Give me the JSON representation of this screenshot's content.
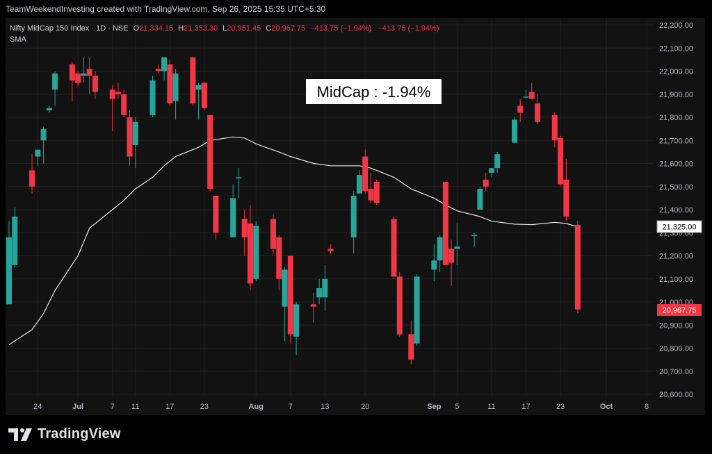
{
  "header": {
    "attribution": "TeamWeekendInvesting created with TradingView.com, Sep 26, 2025 15:35 UTC+5:30"
  },
  "legend": {
    "symbol": "Nifty MidCap 150 Index · 1D · NSE",
    "o_label": "O",
    "o_value": "21,334.15",
    "h_label": "H",
    "h_value": "21,353.30",
    "l_label": "L",
    "l_value": "20,951.45",
    "c_label": "C",
    "c_value": "20,967.75",
    "change": "−413.75 (−1.94%)",
    "change2": "−413.75 (−1.94%)",
    "indicator": "SMA"
  },
  "annotation": {
    "text": "MidCap : -1.94%"
  },
  "price_tags": {
    "sma": "21,325.00",
    "close": "20,967.75"
  },
  "footer": {
    "brand": "TradingView"
  },
  "colors": {
    "up": "#26a69a",
    "down": "#f23645",
    "sma": "#e6e6e6",
    "background": "#121212",
    "grid": "#1f1f1f"
  },
  "chart_data": {
    "type": "candlestick",
    "title": "Nifty MidCap 150 Index · 1D · NSE",
    "ylim": [
      20600,
      22200
    ],
    "y_ticks": [
      "22,200.00",
      "22,100.00",
      "22,000.00",
      "21,900.00",
      "21,800.00",
      "21,700.00",
      "21,600.00",
      "21,500.00",
      "21,400.00",
      "21,300.00",
      "21,200.00",
      "21,100.00",
      "21,000.00",
      "20,900.00",
      "20,800.00",
      "20,700.00",
      "20,600.00"
    ],
    "x_ticks": [
      {
        "label": "24",
        "date": "2025-06-24"
      },
      {
        "label": "Jul",
        "date": "2025-07-01"
      },
      {
        "label": "7",
        "date": "2025-07-07"
      },
      {
        "label": "11",
        "date": "2025-07-11"
      },
      {
        "label": "17",
        "date": "2025-07-17"
      },
      {
        "label": "23",
        "date": "2025-07-23"
      },
      {
        "label": "Aug",
        "date": "2025-08-01"
      },
      {
        "label": "7",
        "date": "2025-08-07"
      },
      {
        "label": "13",
        "date": "2025-08-13"
      },
      {
        "label": "20",
        "date": "2025-08-20"
      },
      {
        "label": "Sep",
        "date": "2025-09-01"
      },
      {
        "label": "5",
        "date": "2025-09-05"
      },
      {
        "label": "11",
        "date": "2025-09-11"
      },
      {
        "label": "17",
        "date": "2025-09-17"
      },
      {
        "label": "23",
        "date": "2025-09-23"
      },
      {
        "label": "Oct",
        "date": "2025-10-01"
      },
      {
        "label": "8",
        "date": "2025-10-08"
      }
    ],
    "candles": [
      {
        "date": "2025-06-19",
        "o": 20990,
        "h": 21350,
        "l": 20990,
        "c": 21280
      },
      {
        "date": "2025-06-20",
        "o": 21160,
        "h": 21410,
        "l": 21150,
        "c": 21370
      },
      {
        "date": "2025-06-23",
        "o": 21570,
        "h": 21640,
        "l": 21470,
        "c": 21500
      },
      {
        "date": "2025-06-24",
        "o": 21630,
        "h": 21660,
        "l": 21590,
        "c": 21660
      },
      {
        "date": "2025-06-25",
        "o": 21700,
        "h": 21760,
        "l": 21600,
        "c": 21750
      },
      {
        "date": "2025-06-26",
        "o": 21830,
        "h": 21850,
        "l": 21820,
        "c": 21840
      },
      {
        "date": "2025-06-27",
        "o": 21920,
        "h": 22000,
        "l": 21850,
        "c": 21990
      },
      {
        "date": "2025-06-30",
        "o": 22030,
        "h": 22040,
        "l": 21870,
        "c": 21960
      },
      {
        "date": "2025-07-01",
        "o": 21990,
        "h": 22000,
        "l": 21930,
        "c": 21950
      },
      {
        "date": "2025-07-02",
        "o": 21980,
        "h": 22060,
        "l": 21950,
        "c": 21990
      },
      {
        "date": "2025-07-03",
        "o": 22010,
        "h": 22060,
        "l": 21900,
        "c": 21980
      },
      {
        "date": "2025-07-04",
        "o": 21980,
        "h": 22000,
        "l": 21880,
        "c": 21910
      },
      {
        "date": "2025-07-07",
        "o": 21920,
        "h": 21940,
        "l": 21740,
        "c": 21880
      },
      {
        "date": "2025-07-08",
        "o": 21910,
        "h": 21950,
        "l": 21880,
        "c": 21900
      },
      {
        "date": "2025-07-09",
        "o": 21900,
        "h": 21920,
        "l": 21800,
        "c": 21810
      },
      {
        "date": "2025-07-10",
        "o": 21800,
        "h": 21830,
        "l": 21590,
        "c": 21630
      },
      {
        "date": "2025-07-11",
        "o": 21680,
        "h": 21800,
        "l": 21580,
        "c": 21780
      },
      {
        "date": "2025-07-14",
        "o": 21810,
        "h": 21980,
        "l": 21800,
        "c": 21960
      },
      {
        "date": "2025-07-15",
        "o": 22010,
        "h": 22030,
        "l": 21990,
        "c": 22000
      },
      {
        "date": "2025-07-16",
        "o": 22000,
        "h": 22060,
        "l": 21960,
        "c": 22060
      },
      {
        "date": "2025-07-17",
        "o": 22030,
        "h": 22050,
        "l": 21850,
        "c": 21860
      },
      {
        "date": "2025-07-18",
        "o": 21870,
        "h": 22010,
        "l": 21790,
        "c": 21990
      },
      {
        "date": "2025-07-21",
        "o": 22060,
        "h": 22060,
        "l": 21850,
        "c": 21860
      },
      {
        "date": "2025-07-22",
        "o": 21920,
        "h": 21950,
        "l": 21790,
        "c": 21940
      },
      {
        "date": "2025-07-23",
        "o": 21950,
        "h": 21950,
        "l": 21830,
        "c": 21840
      },
      {
        "date": "2025-07-24",
        "o": 21810,
        "h": 21810,
        "l": 21480,
        "c": 21490
      },
      {
        "date": "2025-07-25",
        "o": 21460,
        "h": 21460,
        "l": 21270,
        "c": 21300
      },
      {
        "date": "2025-07-28",
        "o": 21280,
        "h": 21510,
        "l": 21280,
        "c": 21450
      },
      {
        "date": "2025-07-29",
        "o": 21540,
        "h": 21580,
        "l": 21450,
        "c": 21540
      },
      {
        "date": "2025-07-30",
        "o": 21360,
        "h": 21400,
        "l": 21200,
        "c": 21280
      },
      {
        "date": "2025-07-31",
        "o": 21340,
        "h": 21420,
        "l": 21050,
        "c": 21080
      },
      {
        "date": "2025-08-01",
        "o": 21100,
        "h": 21350,
        "l": 21090,
        "c": 21330
      },
      {
        "date": "2025-08-04",
        "o": 21360,
        "h": 21380,
        "l": 21210,
        "c": 21230
      },
      {
        "date": "2025-08-05",
        "o": 21280,
        "h": 21290,
        "l": 21050,
        "c": 21100
      },
      {
        "date": "2025-08-06",
        "o": 20980,
        "h": 21150,
        "l": 20830,
        "c": 21140
      },
      {
        "date": "2025-08-07",
        "o": 21200,
        "h": 21200,
        "l": 20820,
        "c": 20860
      },
      {
        "date": "2025-08-08",
        "o": 20850,
        "h": 21000,
        "l": 20770,
        "c": 20990
      },
      {
        "date": "2025-08-11",
        "o": 20990,
        "h": 21040,
        "l": 20910,
        "c": 20980
      },
      {
        "date": "2025-08-12",
        "o": 21020,
        "h": 21100,
        "l": 20990,
        "c": 21060
      },
      {
        "date": "2025-08-13",
        "o": 21020,
        "h": 21160,
        "l": 20960,
        "c": 21100
      },
      {
        "date": "2025-08-14",
        "o": 21230,
        "h": 21250,
        "l": 21210,
        "c": 21220
      },
      {
        "date": "2025-08-18",
        "o": 21280,
        "h": 21480,
        "l": 21210,
        "c": 21460
      },
      {
        "date": "2025-08-19",
        "o": 21470,
        "h": 21570,
        "l": 21470,
        "c": 21550
      },
      {
        "date": "2025-08-20",
        "o": 21630,
        "h": 21660,
        "l": 21470,
        "c": 21480
      },
      {
        "date": "2025-08-21",
        "o": 21490,
        "h": 21560,
        "l": 21430,
        "c": 21440
      },
      {
        "date": "2025-08-22",
        "o": 21520,
        "h": 21530,
        "l": 21420,
        "c": 21430
      },
      {
        "date": "2025-08-25",
        "o": 21360,
        "h": 21370,
        "l": 21100,
        "c": 21110
      },
      {
        "date": "2025-08-26",
        "o": 21110,
        "h": 21130,
        "l": 20850,
        "c": 20860
      },
      {
        "date": "2025-08-28",
        "o": 20860,
        "h": 20920,
        "l": 20730,
        "c": 20750
      },
      {
        "date": "2025-08-29",
        "o": 20820,
        "h": 21120,
        "l": 20810,
        "c": 21110
      },
      {
        "date": "2025-09-01",
        "o": 21140,
        "h": 21250,
        "l": 21090,
        "c": 21180
      },
      {
        "date": "2025-09-02",
        "o": 21180,
        "h": 21290,
        "l": 21130,
        "c": 21280
      },
      {
        "date": "2025-09-03",
        "o": 21520,
        "h": 21520,
        "l": 21160,
        "c": 21160
      },
      {
        "date": "2025-09-04",
        "o": 21230,
        "h": 21270,
        "l": 21070,
        "c": 21170
      },
      {
        "date": "2025-09-05",
        "o": 21230,
        "h": 21340,
        "l": 21160,
        "c": 21240
      },
      {
        "date": "2025-09-08",
        "o": 21290,
        "h": 21300,
        "l": 21240,
        "c": 21290
      },
      {
        "date": "2025-09-09",
        "o": 21400,
        "h": 21500,
        "l": 21400,
        "c": 21490
      },
      {
        "date": "2025-09-10",
        "o": 21530,
        "h": 21560,
        "l": 21480,
        "c": 21500
      },
      {
        "date": "2025-09-11",
        "o": 21560,
        "h": 21580,
        "l": 21540,
        "c": 21580
      },
      {
        "date": "2025-09-12",
        "o": 21580,
        "h": 21650,
        "l": 21560,
        "c": 21640
      },
      {
        "date": "2025-09-15",
        "o": 21690,
        "h": 21800,
        "l": 21690,
        "c": 21790
      },
      {
        "date": "2025-09-16",
        "o": 21850,
        "h": 21880,
        "l": 21780,
        "c": 21820
      },
      {
        "date": "2025-09-17",
        "o": 21890,
        "h": 21920,
        "l": 21880,
        "c": 21890
      },
      {
        "date": "2025-09-18",
        "o": 21910,
        "h": 21950,
        "l": 21880,
        "c": 21880
      },
      {
        "date": "2025-09-19",
        "o": 21860,
        "h": 21900,
        "l": 21770,
        "c": 21780
      },
      {
        "date": "2025-09-22",
        "o": 21810,
        "h": 21820,
        "l": 21670,
        "c": 21700
      },
      {
        "date": "2025-09-23",
        "o": 21710,
        "h": 21720,
        "l": 21500,
        "c": 21510
      },
      {
        "date": "2025-09-24",
        "o": 21530,
        "h": 21620,
        "l": 21350,
        "c": 21370
      },
      {
        "date": "2025-09-26",
        "o": 21334.15,
        "h": 21353.3,
        "l": 20951.45,
        "c": 20967.75
      }
    ],
    "sma": [
      {
        "date": "2025-06-19",
        "v": 20815
      },
      {
        "date": "2025-06-23",
        "v": 20880
      },
      {
        "date": "2025-06-25",
        "v": 20950
      },
      {
        "date": "2025-06-27",
        "v": 21050
      },
      {
        "date": "2025-07-01",
        "v": 21200
      },
      {
        "date": "2025-07-03",
        "v": 21320
      },
      {
        "date": "2025-07-07",
        "v": 21400
      },
      {
        "date": "2025-07-09",
        "v": 21440
      },
      {
        "date": "2025-07-11",
        "v": 21490
      },
      {
        "date": "2025-07-14",
        "v": 21540
      },
      {
        "date": "2025-07-16",
        "v": 21590
      },
      {
        "date": "2025-07-18",
        "v": 21630
      },
      {
        "date": "2025-07-22",
        "v": 21670
      },
      {
        "date": "2025-07-24",
        "v": 21700
      },
      {
        "date": "2025-07-28",
        "v": 21715
      },
      {
        "date": "2025-07-30",
        "v": 21710
      },
      {
        "date": "2025-08-01",
        "v": 21685
      },
      {
        "date": "2025-08-05",
        "v": 21650
      },
      {
        "date": "2025-08-07",
        "v": 21630
      },
      {
        "date": "2025-08-11",
        "v": 21600
      },
      {
        "date": "2025-08-14",
        "v": 21590
      },
      {
        "date": "2025-08-19",
        "v": 21590
      },
      {
        "date": "2025-08-21",
        "v": 21580
      },
      {
        "date": "2025-08-25",
        "v": 21540
      },
      {
        "date": "2025-08-28",
        "v": 21490
      },
      {
        "date": "2025-09-01",
        "v": 21450
      },
      {
        "date": "2025-09-03",
        "v": 21420
      },
      {
        "date": "2025-09-05",
        "v": 21395
      },
      {
        "date": "2025-09-09",
        "v": 21370
      },
      {
        "date": "2025-09-11",
        "v": 21350
      },
      {
        "date": "2025-09-15",
        "v": 21337
      },
      {
        "date": "2025-09-18",
        "v": 21335
      },
      {
        "date": "2025-09-22",
        "v": 21345
      },
      {
        "date": "2025-09-24",
        "v": 21340
      },
      {
        "date": "2025-09-26",
        "v": 21325
      }
    ]
  }
}
